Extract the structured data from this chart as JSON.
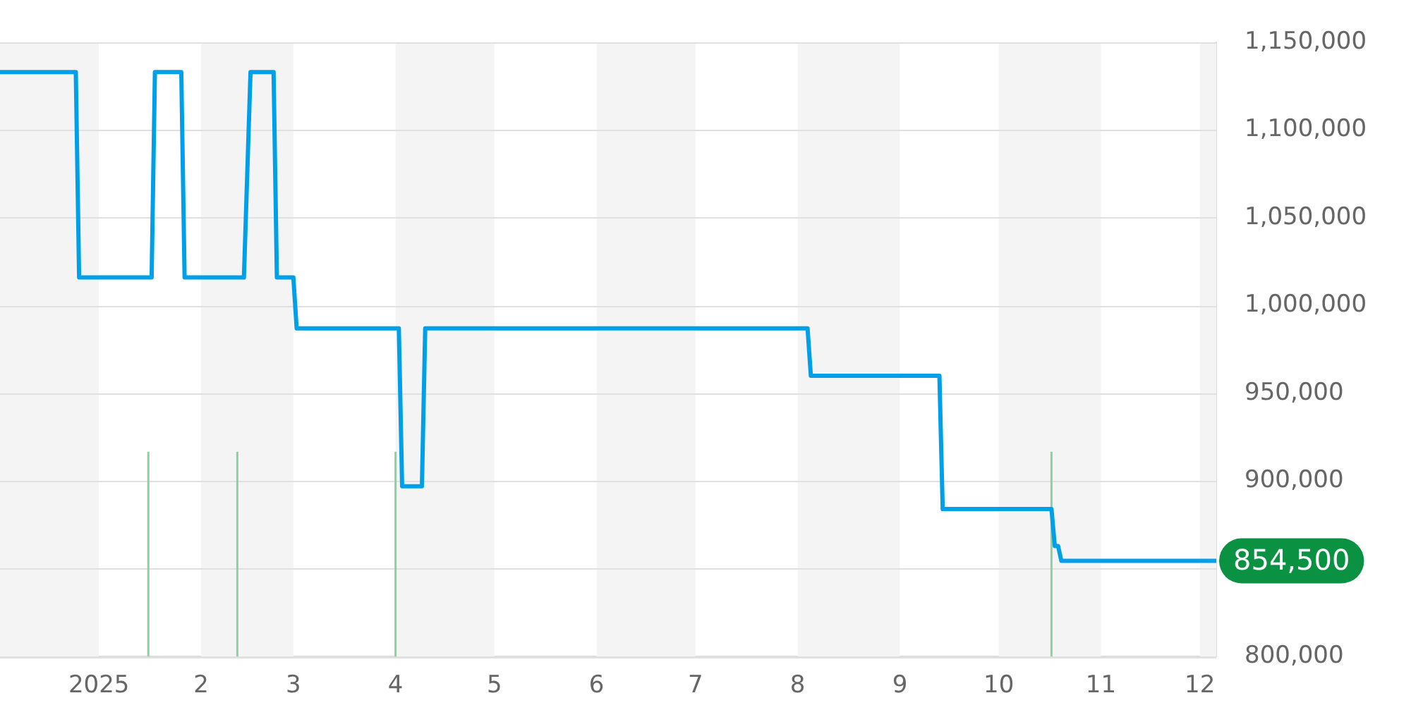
{
  "chart_data": {
    "type": "line",
    "x": [
      "2024-12-02",
      "2024-12-25",
      "2024-12-26",
      "2025-01-17",
      "2025-01-18",
      "2025-01-26",
      "2025-01-27",
      "2025-02-14",
      "2025-02-16",
      "2025-02-23",
      "2025-02-24",
      "2025-03-01",
      "2025-03-02",
      "2025-04-02",
      "2025-04-03",
      "2025-04-09",
      "2025-04-10",
      "2025-08-04",
      "2025-08-05",
      "2025-09-13",
      "2025-09-14",
      "2025-10-17",
      "2025-10-18",
      "2025-10-19",
      "2025-10-20",
      "2025-12-06"
    ],
    "series": [
      {
        "color": "#00a0e9",
        "values": [
          1133000,
          1133000,
          1016000,
          1016000,
          1133000,
          1133000,
          1016000,
          1016000,
          1133000,
          1133000,
          1016000,
          1016000,
          987000,
          987000,
          897000,
          897000,
          987000,
          987000,
          960000,
          960000,
          884000,
          884000,
          863000,
          863000,
          854500,
          854500
        ]
      }
    ],
    "xlim": [
      "2024-12-02",
      "2025-12-06"
    ],
    "xticks": [
      {
        "value": "2025-01-01",
        "label": "2025"
      },
      {
        "value": "2025-02-01",
        "label": "2"
      },
      {
        "value": "2025-03-01",
        "label": "3"
      },
      {
        "value": "2025-04-01",
        "label": "4"
      },
      {
        "value": "2025-05-01",
        "label": "5"
      },
      {
        "value": "2025-06-01",
        "label": "6"
      },
      {
        "value": "2025-07-01",
        "label": "7"
      },
      {
        "value": "2025-08-01",
        "label": "8"
      },
      {
        "value": "2025-09-01",
        "label": "9"
      },
      {
        "value": "2025-10-01",
        "label": "10"
      },
      {
        "value": "2025-11-01",
        "label": "11"
      },
      {
        "value": "2025-12-01",
        "label": "12"
      }
    ],
    "ylim": [
      800000,
      1150000
    ],
    "yticks": [
      {
        "value": 800000,
        "label": "800,000"
      },
      {
        "value": 850000,
        "label": null
      },
      {
        "value": 900000,
        "label": "900,000"
      },
      {
        "value": 950000,
        "label": "950,000"
      },
      {
        "value": 1000000,
        "label": "1,000,000"
      },
      {
        "value": 1050000,
        "label": "1,050,000"
      },
      {
        "value": 1100000,
        "label": "1,100,000"
      },
      {
        "value": 1150000,
        "label": "1,150,000"
      }
    ],
    "grid": "y",
    "legend": false,
    "marker": "none",
    "line_style": "solid",
    "bands": [
      {
        "axis": "x",
        "from": "2024-12-02",
        "to": "2025-01-01",
        "color": "#f4f4f4"
      },
      {
        "axis": "x",
        "from": "2025-02-01",
        "to": "2025-03-01",
        "color": "#f4f4f4"
      },
      {
        "axis": "x",
        "from": "2025-04-01",
        "to": "2025-05-01",
        "color": "#f4f4f4"
      },
      {
        "axis": "x",
        "from": "2025-06-01",
        "to": "2025-07-01",
        "color": "#f4f4f4"
      },
      {
        "axis": "x",
        "from": "2025-08-01",
        "to": "2025-09-01",
        "color": "#f4f4f4"
      },
      {
        "axis": "x",
        "from": "2025-10-01",
        "to": "2025-11-01",
        "color": "#f4f4f4"
      },
      {
        "axis": "x",
        "from": "2025-12-01",
        "to": "2025-12-06",
        "color": "#f4f4f4"
      }
    ],
    "ref_lines": [
      {
        "axis": "x",
        "value": "2025-01-16",
        "color": "#8fd19e"
      },
      {
        "axis": "x",
        "value": "2025-02-12",
        "color": "#8fd19e"
      },
      {
        "axis": "x",
        "value": "2025-04-01",
        "color": "#8fd19e"
      },
      {
        "axis": "x",
        "value": "2025-10-17",
        "color": "#8fd19e"
      }
    ],
    "annotations": [
      "854,500"
    ]
  }
}
